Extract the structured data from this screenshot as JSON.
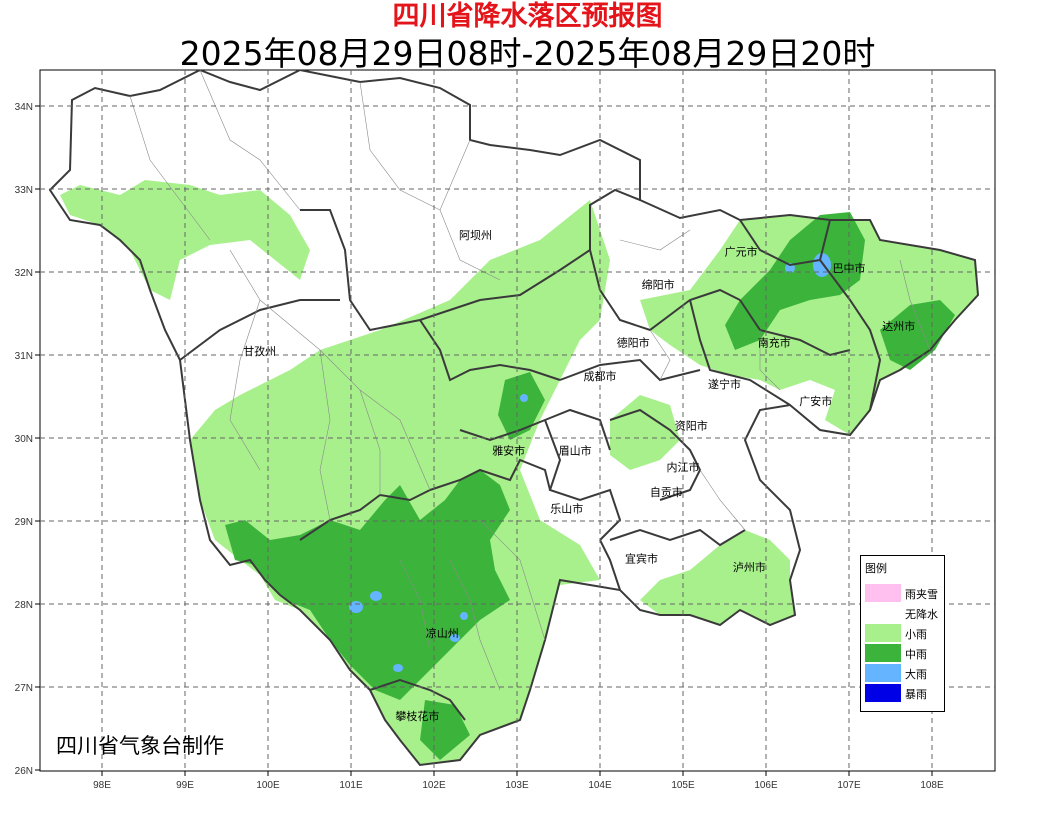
{
  "header": {
    "title": "四川省降水落区预报图",
    "subtitle": "2025年08月29日08时-2025年08月29日20时"
  },
  "axes": {
    "lon_ticks": [
      "98E",
      "99E",
      "100E",
      "101E",
      "102E",
      "103E",
      "104E",
      "105E",
      "106E",
      "107E",
      "108E"
    ],
    "lat_ticks": [
      "34N",
      "33N",
      "32N",
      "31N",
      "30N",
      "29N",
      "28N",
      "27N",
      "26N"
    ],
    "lon_range": [
      97.3,
      108.7
    ],
    "lat_range": [
      26,
      34.4
    ],
    "grid": "dashed"
  },
  "regions": [
    {
      "name": "阿坝州",
      "lon": 102.5,
      "lat": 32.4
    },
    {
      "name": "甘孜州",
      "lon": 99.9,
      "lat": 31.0
    },
    {
      "name": "绵阳市",
      "lon": 104.7,
      "lat": 31.8
    },
    {
      "name": "广元市",
      "lon": 105.7,
      "lat": 32.2
    },
    {
      "name": "巴中市",
      "lon": 107.0,
      "lat": 32.0
    },
    {
      "name": "达州市",
      "lon": 107.6,
      "lat": 31.3
    },
    {
      "name": "德阳市",
      "lon": 104.4,
      "lat": 31.1
    },
    {
      "name": "南充市",
      "lon": 106.1,
      "lat": 31.1
    },
    {
      "name": "成都市",
      "lon": 104.0,
      "lat": 30.7
    },
    {
      "name": "遂宁市",
      "lon": 105.5,
      "lat": 30.6
    },
    {
      "name": "广安市",
      "lon": 106.6,
      "lat": 30.4
    },
    {
      "name": "资阳市",
      "lon": 105.1,
      "lat": 30.1
    },
    {
      "name": "雅安市",
      "lon": 102.9,
      "lat": 29.8
    },
    {
      "name": "眉山市",
      "lon": 103.7,
      "lat": 29.8
    },
    {
      "name": "内江市",
      "lon": 105.0,
      "lat": 29.6
    },
    {
      "name": "自贡市",
      "lon": 104.8,
      "lat": 29.3
    },
    {
      "name": "乐山市",
      "lon": 103.6,
      "lat": 29.1
    },
    {
      "name": "宜宾市",
      "lon": 104.5,
      "lat": 28.5
    },
    {
      "name": "泸州市",
      "lon": 105.8,
      "lat": 28.4
    },
    {
      "name": "凉山州",
      "lon": 102.1,
      "lat": 27.6
    },
    {
      "name": "攀枝花市",
      "lon": 101.8,
      "lat": 26.6
    }
  ],
  "legend": {
    "title": "图例",
    "items": [
      {
        "label": "雨夹雪",
        "color": "#ffc0f0"
      },
      {
        "label": "无降水",
        "color": "#ffffff"
      },
      {
        "label": "小雨",
        "color": "#a8f08c"
      },
      {
        "label": "中雨",
        "color": "#3cb43c"
      },
      {
        "label": "大雨",
        "color": "#64b4ff"
      },
      {
        "label": "暴雨",
        "color": "#0000e6"
      }
    ]
  },
  "footer": {
    "credit": "四川省气象台制作"
  }
}
